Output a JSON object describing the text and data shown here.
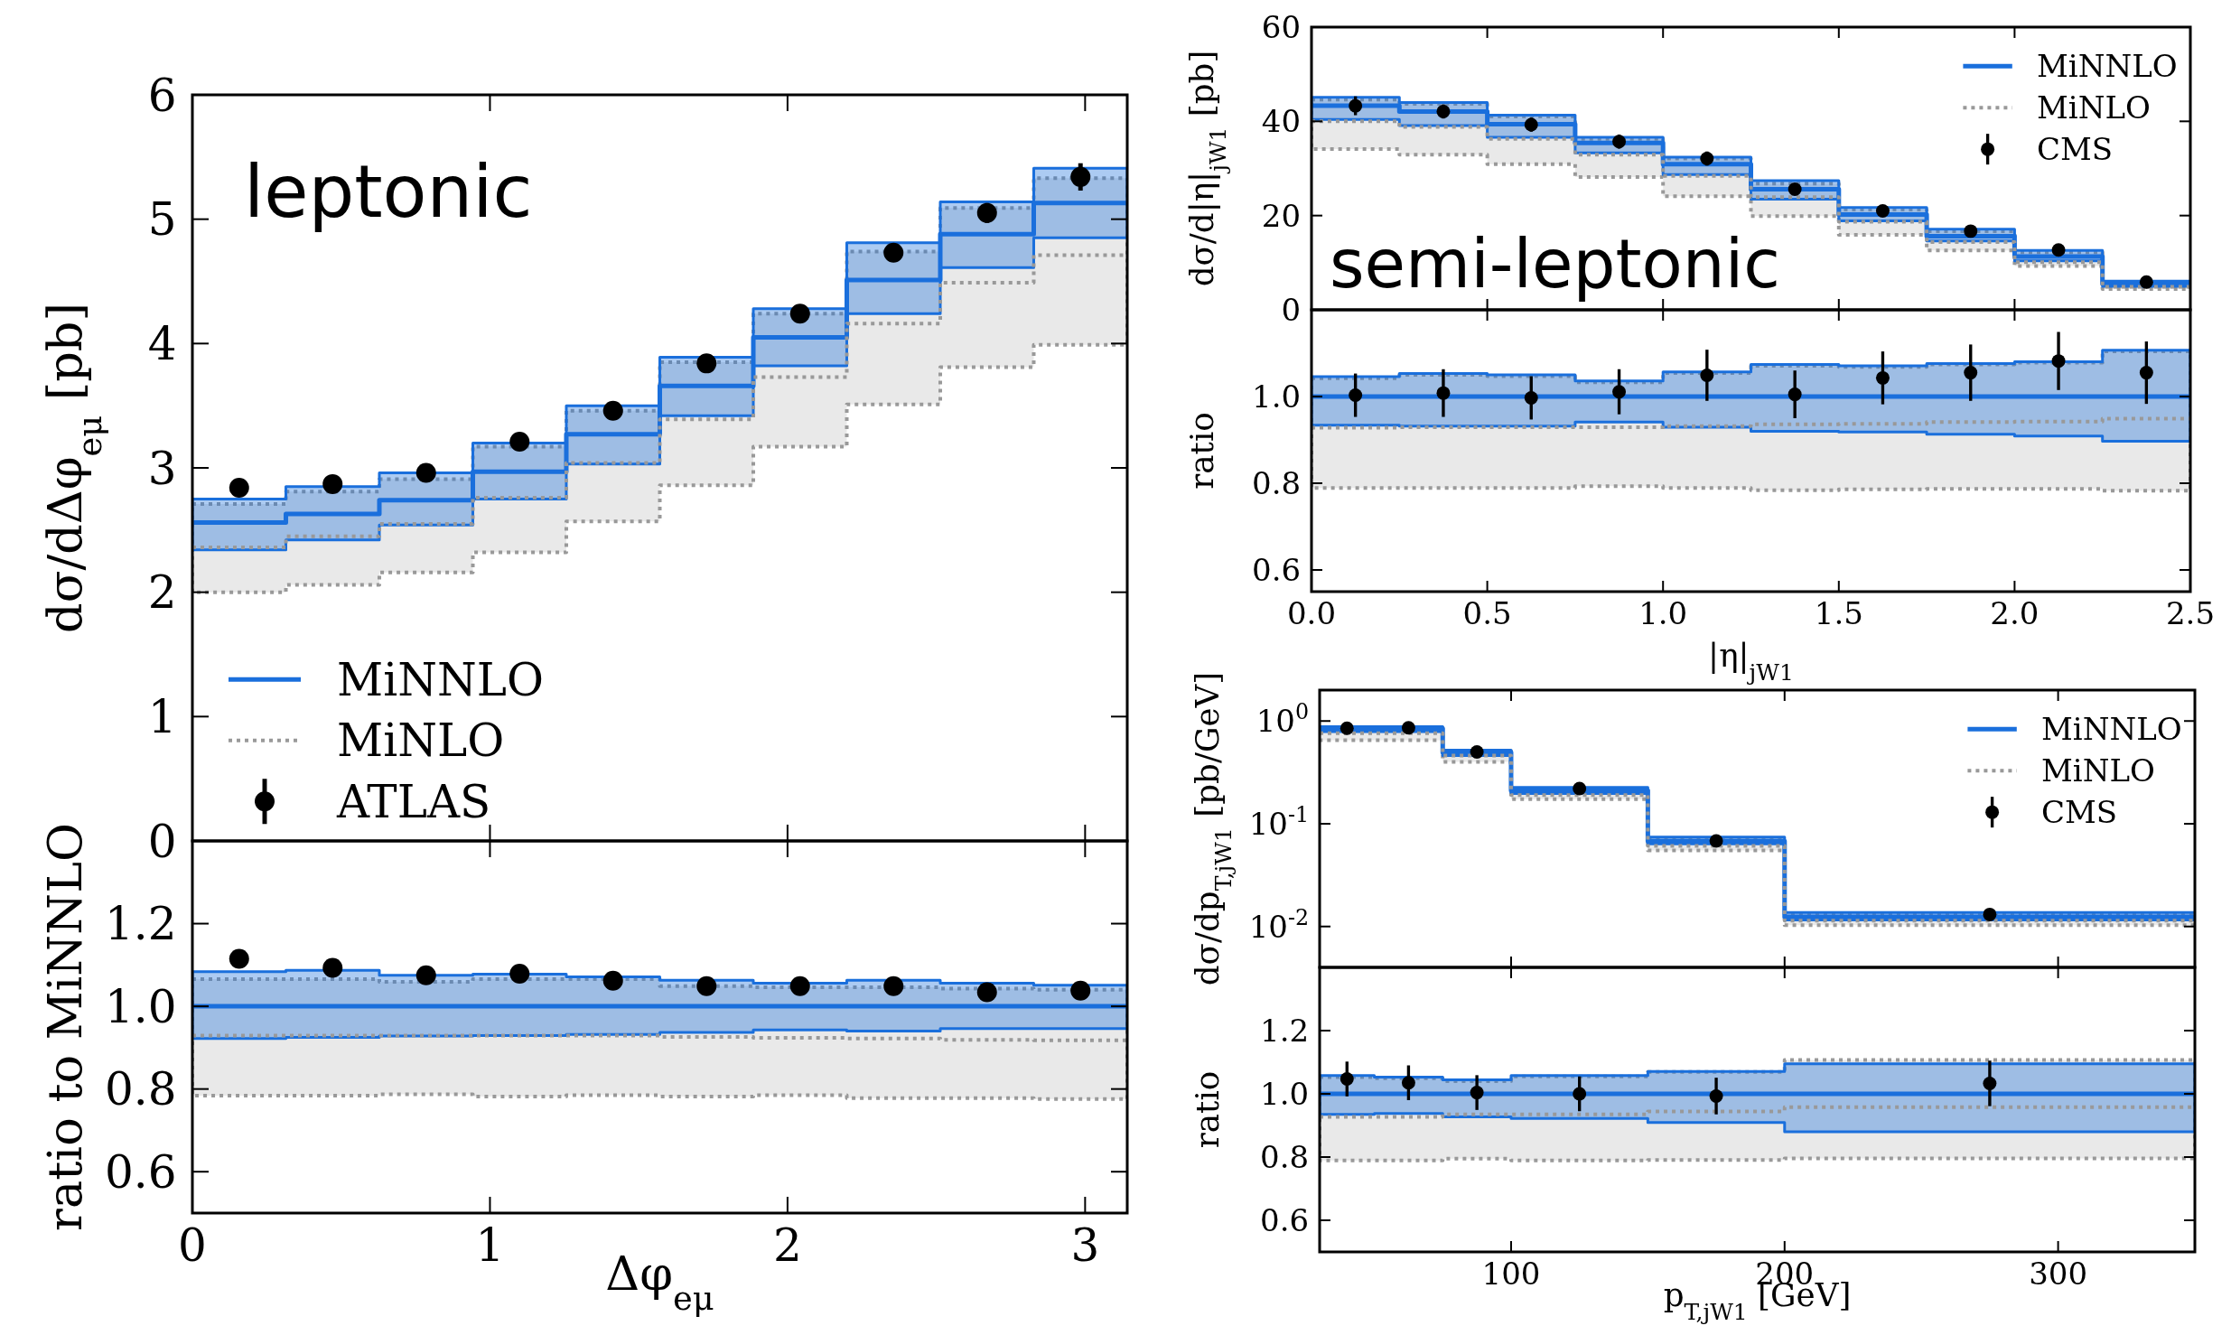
{
  "chart_data": [
    {
      "type": "step",
      "annotations": [
        "leptonic"
      ],
      "ylabel": "dσ/dΔφ$_{eμ}$ [pb]",
      "xlim": [
        0,
        3.1416
      ],
      "xticks": [
        0,
        1,
        2,
        3
      ],
      "ylim": [
        0,
        6
      ],
      "yticks": [
        0,
        1,
        2,
        3,
        4,
        5,
        6
      ],
      "tick_labels": "y",
      "legend": "bottom left",
      "grid": false,
      "series": [
        {
          "name": "MiNNLO",
          "color": "#1a6fdc",
          "line_style": "solid",
          "x": [
            0,
            0.3142,
            0.6283,
            0.9425,
            1.2566,
            1.5708,
            1.885,
            2.1991,
            2.5133,
            2.8274,
            3.1416
          ],
          "values": [
            2.56,
            2.63,
            2.74,
            2.97,
            3.27,
            3.66,
            4.05,
            4.51,
            4.88,
            5.13,
            5.13
          ],
          "lower": [
            2.34,
            2.42,
            2.54,
            2.75,
            3.03,
            3.42,
            3.82,
            4.24,
            4.61,
            4.85,
            4.85
          ],
          "upper": [
            2.75,
            2.85,
            2.96,
            3.2,
            3.5,
            3.89,
            4.28,
            4.81,
            5.14,
            5.41,
            5.41
          ]
        },
        {
          "name": "MiNLO",
          "color": "#999999",
          "line_style": "dotted",
          "x": [
            0,
            0.3142,
            0.6283,
            0.9425,
            1.2566,
            1.5708,
            1.885,
            2.1991,
            2.5133,
            2.8274,
            3.1416
          ],
          "values": [
            2.36,
            2.45,
            2.55,
            2.76,
            3.04,
            3.39,
            3.73,
            4.16,
            4.49,
            4.71,
            4.71
          ],
          "lower": [
            2.0,
            2.06,
            2.16,
            2.32,
            2.57,
            2.86,
            3.17,
            3.51,
            3.81,
            3.99,
            3.99
          ],
          "upper": [
            2.71,
            2.81,
            2.91,
            3.17,
            3.46,
            3.85,
            4.24,
            4.74,
            5.09,
            5.33,
            5.33
          ]
        },
        {
          "name": "ATLAS",
          "type": "scatter",
          "color": "#000000",
          "marker": "circle",
          "x": [
            0.1571,
            0.4712,
            0.7854,
            1.0996,
            1.4137,
            1.7279,
            2.042,
            2.3562,
            2.6704,
            2.9845
          ],
          "values": [
            2.84,
            2.87,
            2.96,
            3.21,
            3.46,
            3.84,
            4.24,
            4.73,
            5.05,
            5.34
          ],
          "errors": [
            0.05,
            0.05,
            0.05,
            0.05,
            0.05,
            0.06,
            0.06,
            0.07,
            0.08,
            0.11
          ]
        }
      ]
    },
    {
      "type": "step",
      "ylabel": "ratio to MiNNLO",
      "xlabel": "Δφ$_{eμ}$",
      "xlim": [
        0,
        3.1416
      ],
      "xticks": [
        0,
        1,
        2,
        3
      ],
      "ylim": [
        0.5,
        1.4
      ],
      "yticks": [
        0.6,
        0.8,
        {
          "value": 1,
          "label": "1.0"
        },
        1.2
      ],
      "legend": false,
      "grid": false,
      "series": [
        {
          "color": "#1a6fdc",
          "line_style": "solid",
          "x": [
            0,
            0.3142,
            0.6283,
            0.9425,
            1.2566,
            1.5708,
            1.885,
            2.1991,
            2.5133,
            2.8274,
            3.1416
          ],
          "values": [
            1,
            1,
            1,
            1,
            1,
            1,
            1,
            1,
            1,
            1,
            1
          ],
          "lower": [
            0.922,
            0.925,
            0.928,
            0.929,
            0.932,
            0.937,
            0.943,
            0.94,
            0.946,
            0.946,
            0.946
          ],
          "upper": [
            1.084,
            1.087,
            1.075,
            1.078,
            1.071,
            1.063,
            1.056,
            1.063,
            1.056,
            1.051,
            1.051
          ]
        },
        {
          "color": "#999999",
          "line_style": "dotted",
          "x": [
            0,
            0.3142,
            0.6283,
            0.9425,
            1.2566,
            1.5708,
            1.885,
            2.1991,
            2.5133,
            2.8274,
            3.1416
          ],
          "values": [
            0.929,
            0.929,
            0.929,
            0.929,
            0.929,
            0.926,
            0.924,
            0.922,
            0.919,
            0.918,
            0.918
          ],
          "lower": [
            0.784,
            0.784,
            0.787,
            0.782,
            0.785,
            0.782,
            0.785,
            0.778,
            0.778,
            0.776,
            0.776
          ],
          "upper": [
            1.066,
            1.066,
            1.059,
            1.066,
            1.066,
            1.049,
            1.046,
            1.046,
            1.043,
            1.04,
            1.04
          ]
        },
        {
          "type": "scatter",
          "color": "#000000",
          "marker": "circle",
          "x": [
            0.1571,
            0.4712,
            0.7854,
            1.0996,
            1.4137,
            1.7279,
            2.042,
            2.3562,
            2.6704,
            2.9845
          ],
          "values": [
            1.115,
            1.093,
            1.075,
            1.079,
            1.062,
            1.049,
            1.049,
            1.049,
            1.034,
            1.038
          ],
          "errors": [
            0.02,
            0.015,
            0.015,
            0.015,
            0.015,
            0.015,
            0.015,
            0.015,
            0.015,
            0.02
          ]
        }
      ]
    },
    {
      "type": "step",
      "annotations": [
        "semi-leptonic"
      ],
      "ylabel": "dσ/d|η|$_{jW1}$ [pb]",
      "xlim": [
        0,
        2.5
      ],
      "xticks": [
        0,
        0.5,
        1,
        1.5,
        2,
        2.5
      ],
      "ylim": [
        0,
        60
      ],
      "yticks": [
        0,
        20,
        40,
        60
      ],
      "tick_labels": "y",
      "legend": "top right",
      "grid": false,
      "series": [
        {
          "name": "MiNNLO",
          "color": "#1a6fdc",
          "line_style": "solid",
          "x": [
            0,
            0.25,
            0.5,
            0.75,
            1,
            1.25,
            1.5,
            1.75,
            2,
            2.25,
            2.5
          ],
          "values": [
            43.3,
            42.1,
            39.4,
            35.4,
            30.9,
            25.6,
            20.2,
            15.6,
            11.3,
            5.5,
            5.5
          ],
          "lower": [
            40.4,
            39.1,
            36.6,
            33.3,
            28.7,
            23.5,
            18.9,
            14.6,
            10.4,
            5.0,
            5.0
          ],
          "upper": [
            45.1,
            44.0,
            41.3,
            36.6,
            32.4,
            27.4,
            21.7,
            17.1,
            12.6,
            6.1,
            6.1
          ]
        },
        {
          "name": "MiNLO",
          "color": "#999999",
          "line_style": "dotted",
          "x": [
            0,
            0.25,
            0.5,
            0.75,
            1,
            1.25,
            1.5,
            1.75,
            2,
            2.25,
            2.5
          ],
          "values": [
            40.0,
            38.8,
            36.3,
            32.9,
            28.4,
            23.9,
            18.7,
            14.4,
            10.1,
            4.9,
            4.9
          ],
          "lower": [
            34.1,
            32.9,
            30.9,
            28.2,
            24.1,
            19.9,
            15.9,
            12.6,
            9.3,
            4.4,
            4.4
          ],
          "upper": [
            44.6,
            43.7,
            41.0,
            36.3,
            32.1,
            26.8,
            21.3,
            16.7,
            12.2,
            5.9,
            5.9
          ]
        },
        {
          "name": "CMS",
          "type": "scatter",
          "color": "#000000",
          "marker": "circle",
          "x": [
            0.125,
            0.375,
            0.625,
            0.875,
            1.125,
            1.375,
            1.625,
            1.875,
            2.125,
            2.375
          ],
          "values": [
            43.3,
            42.1,
            39.3,
            35.7,
            32.1,
            25.6,
            21.0,
            16.7,
            12.7,
            5.9
          ],
          "errors": [
            2,
            1.5,
            1.5,
            1.5,
            1.5,
            1,
            1,
            1,
            0.7,
            0.5
          ]
        }
      ]
    },
    {
      "type": "step",
      "ylabel": "ratio",
      "xlabel": "|η|$_{jW1}$",
      "xlim": [
        0,
        2.5
      ],
      "xticks": [
        {
          "value": 0,
          "label": "0.0"
        },
        0.5,
        {
          "value": 1,
          "label": "1.0"
        },
        1.5,
        {
          "value": 2,
          "label": "2.0"
        },
        2.5
      ],
      "ylim": [
        0.55,
        1.2
      ],
      "yticks": [
        0.6,
        0.8,
        {
          "value": 1,
          "label": "1.0"
        }
      ],
      "legend": false,
      "grid": false,
      "series": [
        {
          "color": "#1a6fdc",
          "line_style": "solid",
          "x": [
            0,
            0.25,
            0.5,
            0.75,
            1,
            1.25,
            1.5,
            1.75,
            2,
            2.25,
            2.5
          ],
          "values": [
            1,
            1,
            1,
            1,
            1,
            1,
            1,
            1,
            1,
            1,
            1
          ],
          "lower": [
            0.934,
            0.932,
            0.932,
            0.941,
            0.929,
            0.92,
            0.918,
            0.913,
            0.909,
            0.897,
            0.897
          ],
          "upper": [
            1.046,
            1.053,
            1.05,
            1.036,
            1.057,
            1.074,
            1.071,
            1.076,
            1.08,
            1.107,
            1.107
          ]
        },
        {
          "color": "#999999",
          "line_style": "dotted",
          "x": [
            0,
            0.25,
            0.5,
            0.75,
            1,
            1.25,
            1.5,
            1.75,
            2,
            2.25,
            2.5
          ],
          "values": [
            0.928,
            0.929,
            0.929,
            0.929,
            0.932,
            0.936,
            0.937,
            0.941,
            0.942,
            0.949,
            0.949
          ],
          "lower": [
            0.789,
            0.789,
            0.789,
            0.793,
            0.789,
            0.784,
            0.786,
            0.787,
            0.787,
            0.783,
            0.783
          ],
          "upper": [
            1.042,
            1.05,
            1.047,
            1.033,
            1.054,
            1.071,
            1.068,
            1.074,
            1.078,
            1.104,
            1.104
          ]
        },
        {
          "type": "scatter",
          "color": "#000000",
          "marker": "circle",
          "x": [
            0.125,
            0.375,
            0.625,
            0.875,
            1.125,
            1.375,
            1.625,
            1.875,
            2.125,
            2.375
          ],
          "values": [
            1.003,
            1.008,
            0.997,
            1.011,
            1.049,
            1.005,
            1.043,
            1.055,
            1.082,
            1.055
          ],
          "errors": [
            0.05,
            0.055,
            0.05,
            0.052,
            0.059,
            0.055,
            0.061,
            0.065,
            0.067,
            0.072
          ]
        }
      ]
    },
    {
      "type": "step",
      "ylabel": "dσ/dp$_{T,jW1}$ [pb/GeV]",
      "xlim": [
        30,
        350
      ],
      "xticks": [
        100,
        200,
        300
      ],
      "ylim": [
        0.004,
        2
      ],
      "yticks": [
        {
          "value": 1,
          "label": "10$^{0}$"
        },
        {
          "value": 0.1,
          "label": "10$^{-1}$"
        },
        {
          "value": 0.01,
          "label": "10$^{-2}$"
        }
      ],
      "log": "y",
      "tick_labels": "y",
      "legend": "top right",
      "grid": false,
      "series": [
        {
          "name": "MiNNLO",
          "color": "#1a6fdc",
          "line_style": "solid",
          "x": [
            30,
            50,
            75,
            100,
            150,
            200,
            350
          ],
          "values": [
            0.84,
            0.84,
            0.494,
            0.21,
            0.0677,
            0.0124,
            0.0124
          ],
          "lower": [
            0.79,
            0.79,
            0.46,
            0.197,
            0.0636,
            0.0116,
            0.0116
          ],
          "upper": [
            0.88,
            0.88,
            0.52,
            0.226,
            0.074,
            0.0137,
            0.0137
          ]
        },
        {
          "name": "MiNLO",
          "color": "#999999",
          "line_style": "dotted",
          "x": [
            30,
            50,
            75,
            100,
            150,
            200,
            350
          ],
          "values": [
            0.76,
            0.76,
            0.46,
            0.19,
            0.061,
            0.0114,
            0.0114
          ],
          "lower": [
            0.65,
            0.65,
            0.4,
            0.174,
            0.055,
            0.0103,
            0.0103
          ],
          "upper": [
            0.86,
            0.86,
            0.51,
            0.22,
            0.072,
            0.013,
            0.013
          ]
        },
        {
          "name": "CMS",
          "type": "scatter",
          "color": "#000000",
          "marker": "circle",
          "x": [
            40,
            62.5,
            87.5,
            125,
            175,
            275
          ],
          "values": [
            0.85,
            0.86,
            0.5,
            0.22,
            0.068,
            0.0131
          ]
        }
      ]
    },
    {
      "type": "step",
      "ylabel": "ratio",
      "xlabel": "p$_{T,jW1}$ [GeV]",
      "xlim": [
        30,
        350
      ],
      "xticks": [
        100,
        200,
        300
      ],
      "ylim": [
        0.5,
        1.4
      ],
      "yticks": [
        0.6,
        0.8,
        {
          "value": 1,
          "label": "1.0"
        },
        1.2
      ],
      "legend": false,
      "grid": false,
      "series": [
        {
          "color": "#1a6fdc",
          "line_style": "solid",
          "x": [
            30,
            50,
            75,
            100,
            150,
            200,
            350
          ],
          "values": [
            1,
            1,
            1,
            1,
            1,
            1,
            1
          ],
          "lower": [
            0.935,
            0.938,
            0.927,
            0.922,
            0.909,
            0.88,
            0.88
          ],
          "upper": [
            1.058,
            1.053,
            1.044,
            1.058,
            1.071,
            1.095,
            1.095
          ]
        },
        {
          "color": "#999999",
          "line_style": "dotted",
          "x": [
            30,
            50,
            75,
            100,
            150,
            200,
            350
          ],
          "values": [
            0.927,
            0.927,
            0.935,
            0.935,
            0.944,
            0.958,
            0.958
          ],
          "lower": [
            0.789,
            0.789,
            0.795,
            0.789,
            0.791,
            0.796,
            0.796
          ],
          "upper": [
            1.053,
            1.049,
            1.04,
            1.055,
            1.069,
            1.107,
            1.107
          ]
        },
        {
          "type": "scatter",
          "color": "#000000",
          "marker": "circle",
          "x": [
            40,
            62.5,
            87.5,
            125,
            175,
            275
          ],
          "values": [
            1.047,
            1.035,
            1.004,
            1.0,
            0.993,
            1.033
          ],
          "errors": [
            0.055,
            0.055,
            0.055,
            0.055,
            0.058,
            0.072
          ]
        }
      ]
    }
  ]
}
